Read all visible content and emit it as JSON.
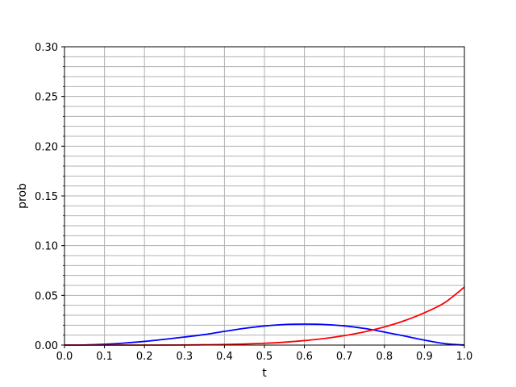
{
  "chart_data": {
    "type": "line",
    "title": "",
    "xlabel": "t",
    "ylabel": "prob",
    "xlim": [
      0.0,
      1.0
    ],
    "ylim": [
      0.0,
      0.3
    ],
    "x_ticks": [
      "0.0",
      "0.1",
      "0.2",
      "0.3",
      "0.4",
      "0.5",
      "0.6",
      "0.7",
      "0.8",
      "0.9",
      "1.0"
    ],
    "y_ticks": [
      "0.00",
      "0.05",
      "0.10",
      "0.15",
      "0.20",
      "0.25",
      "0.30"
    ],
    "y_minor_step": 0.01,
    "grid": true,
    "legend": "none",
    "series": [
      {
        "color": "#0000ff",
        "x": [
          0.0,
          0.05,
          0.1,
          0.15,
          0.2,
          0.25,
          0.3,
          0.35,
          0.4,
          0.45,
          0.5,
          0.55,
          0.6,
          0.65,
          0.7,
          0.75,
          0.8,
          0.85,
          0.9,
          0.95,
          1.0
        ],
        "y": [
          0.0,
          0.0001,
          0.0008,
          0.002,
          0.0037,
          0.0058,
          0.0081,
          0.0106,
          0.0138,
          0.0168,
          0.0192,
          0.0207,
          0.0211,
          0.0207,
          0.0193,
          0.0167,
          0.0131,
          0.0091,
          0.005,
          0.0015,
          0.0
        ]
      },
      {
        "color": "#ff0000",
        "x": [
          0.0,
          0.1,
          0.2,
          0.3,
          0.4,
          0.45,
          0.5,
          0.55,
          0.6,
          0.65,
          0.7,
          0.75,
          0.8,
          0.85,
          0.9,
          0.95,
          1.0
        ],
        "y": [
          0.0,
          0.0,
          0.0,
          0.0001,
          0.0006,
          0.0011,
          0.0018,
          0.0029,
          0.0045,
          0.0066,
          0.0095,
          0.0133,
          0.0182,
          0.0245,
          0.0325,
          0.0425,
          0.0583
        ]
      }
    ]
  }
}
